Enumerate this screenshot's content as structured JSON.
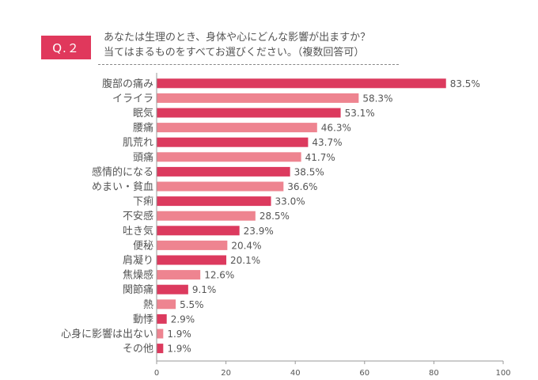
{
  "header": {
    "badge": "Q.２",
    "question_line1": "あなたは生理のとき、身体や心にどんな影響が出ますか？",
    "question_line2": "当てはまるものをすべてお選びください。（複数回答可）"
  },
  "colors": {
    "badge": "#e0385c",
    "bar_dark": "#dc3a5e",
    "bar_light": "#ee8490",
    "axis": "#999999",
    "text": "#555555"
  },
  "chart_data": {
    "type": "bar",
    "orientation": "horizontal",
    "categories": [
      "腹部の痛み",
      "イライラ",
      "眠気",
      "腰痛",
      "肌荒れ",
      "頭痛",
      "感情的になる",
      "めまい・貧血",
      "下痢",
      "不安感",
      "吐き気",
      "便秘",
      "肩凝り",
      "焦燥感",
      "関節痛",
      "熱",
      "動悸",
      "心身に影響は出ない",
      "その他"
    ],
    "values": [
      83.5,
      58.3,
      53.1,
      46.3,
      43.7,
      41.7,
      38.5,
      36.6,
      33.0,
      28.5,
      23.9,
      20.4,
      20.1,
      12.6,
      9.1,
      5.5,
      2.9,
      1.9,
      1.9
    ],
    "value_labels": [
      "83.5%",
      "58.3%",
      "53.1%",
      "46.3%",
      "43.7%",
      "41.7%",
      "38.5%",
      "36.6%",
      "33.0%",
      "28.5%",
      "23.9%",
      "20.4%",
      "20.1%",
      "12.6%",
      "9.1%",
      "5.5%",
      "2.9%",
      "1.9%",
      "1.9%"
    ],
    "xlim": [
      0,
      100
    ],
    "xticks": [
      0,
      20,
      40,
      60,
      80,
      100
    ],
    "xtick_labels": [
      "0",
      "20",
      "40",
      "60",
      "80",
      "100"
    ],
    "grid": false,
    "legend": "none"
  }
}
